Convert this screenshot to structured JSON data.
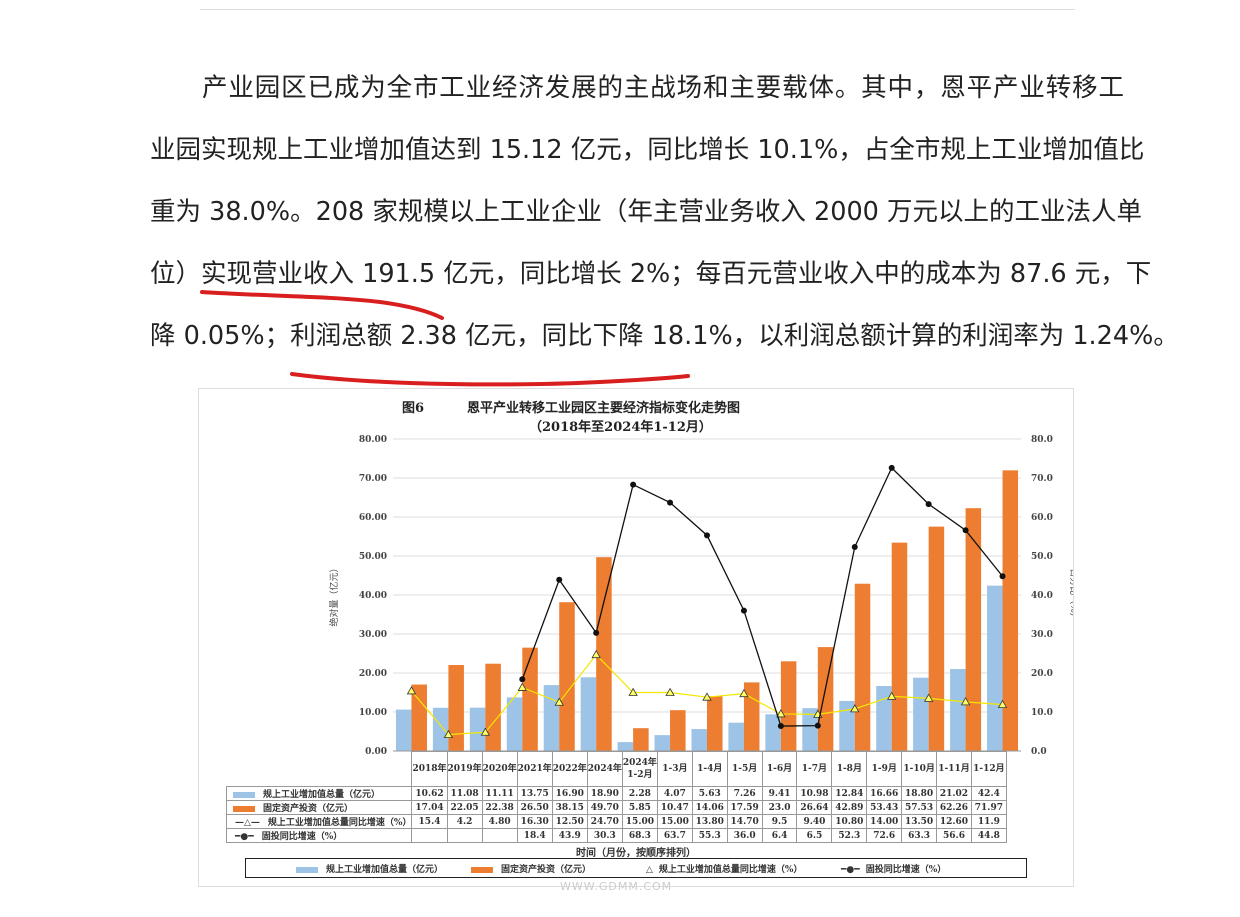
{
  "paragraph": {
    "lines": [
      "产业园区已成为全市工业经济发展的主战场和主要载体。其中，恩平产业转移工",
      "业园实现规上工业增加值达到 15.12 亿元，同比增长 10.1%，占全市规上工业增加值比",
      "重为 38.0%。208 家规模以上工业企业（年主营业务收入 2000 万元以上的工业法人单",
      "位）实现营业收入 191.5 亿元，同比增长 2%；每百元营业收入中的成本为 87.6 元，下",
      "降 0.05%；利润总额 2.38 亿元，同比下降 18.1%，以利润总额计算的利润率为 1.24%。"
    ]
  },
  "chart_data": {
    "type": "bar+line",
    "figure_no": "图6",
    "title": "恩平产业转移工业园区主要经济指标变化走势图",
    "subtitle": "（2018年至2024年1-12月）",
    "xlabel": "时间（月份，按顺序排列）",
    "ylabel_left": "绝对量（亿元）",
    "ylabel_right": "百分比（%）",
    "ylim_left": [
      0,
      80
    ],
    "ylim_right": [
      0,
      80
    ],
    "yticks_left": [
      "0.00",
      "10.00",
      "20.00",
      "30.00",
      "40.00",
      "50.00",
      "60.00",
      "70.00",
      "80.00"
    ],
    "yticks_right": [
      "0.0",
      "10.0",
      "20.0",
      "30.0",
      "40.0",
      "50.0",
      "60.0",
      "70.0",
      "80.0"
    ],
    "categories": [
      "2018年",
      "2019年",
      "2020年",
      "2021年",
      "2022年",
      "2024年",
      "2024年\n1-2月",
      "1-3月",
      "1-4月",
      "1-5月",
      "1-6月",
      "1-7月",
      "1-8月",
      "1-9月",
      "1-10月",
      "1-11月",
      "1-12月"
    ],
    "series": [
      {
        "name": "规上工业增加值总量（亿元）",
        "type": "bar",
        "color": "#9dc3e6",
        "values": [
          10.62,
          11.08,
          11.11,
          13.75,
          16.9,
          18.9,
          2.28,
          4.07,
          5.63,
          7.26,
          9.41,
          10.98,
          12.84,
          16.66,
          18.8,
          21.02,
          42.4
        ],
        "labels": [
          "10.62",
          "11.08",
          "11.11",
          "13.75",
          "16.90",
          "18.90",
          "2.28",
          "4.07",
          "5.63",
          "7.26",
          "9.41",
          "10.98",
          "12.84",
          "16.66",
          "18.80",
          "21.02",
          "42.4"
        ]
      },
      {
        "name": "固定资产投资（亿元）",
        "type": "bar",
        "color": "#ed7d31",
        "values": [
          17.04,
          22.05,
          22.38,
          26.5,
          38.15,
          49.7,
          5.85,
          10.47,
          14.06,
          17.59,
          23.0,
          26.64,
          42.89,
          53.43,
          57.53,
          62.26,
          71.97
        ],
        "labels": [
          "17.04",
          "22.05",
          "22.38",
          "26.50",
          "38.15",
          "49.70",
          "5.85",
          "10.47",
          "14.06",
          "17.59",
          "23.0",
          "26.64",
          "42.89",
          "53.43",
          "57.53",
          "62.26",
          "71.97"
        ]
      },
      {
        "name": "规上工业增加值总量同比增速（%）",
        "type": "line",
        "color": "#ffff00",
        "values": [
          15.4,
          4.2,
          4.8,
          16.3,
          12.5,
          24.7,
          15.0,
          15.0,
          13.8,
          14.7,
          9.5,
          9.4,
          10.8,
          14.0,
          13.5,
          12.6,
          11.9
        ],
        "labels": [
          "15.4",
          "4.2",
          "4.80",
          "16.30",
          "12.50",
          "24.70",
          "15.00",
          "15.00",
          "13.80",
          "14.70",
          "9.5",
          "9.40",
          "10.80",
          "14.00",
          "13.50",
          "12.60",
          "11.9"
        ]
      },
      {
        "name": "固投同比增速（%）",
        "type": "line",
        "color": "#000000",
        "values": [
          null,
          null,
          null,
          18.4,
          43.9,
          30.3,
          68.3,
          63.7,
          55.3,
          36.0,
          6.4,
          6.5,
          52.3,
          72.6,
          63.3,
          56.6,
          44.8
        ],
        "labels": [
          "",
          "",
          "",
          "18.4",
          "43.9",
          "30.3",
          "68.3",
          "63.7",
          "55.3",
          "36.0",
          "6.4",
          "6.5",
          "52.3",
          "72.6",
          "63.3",
          "56.6",
          "44.8"
        ]
      }
    ]
  },
  "watermark": "WWW.GDMM.COM"
}
